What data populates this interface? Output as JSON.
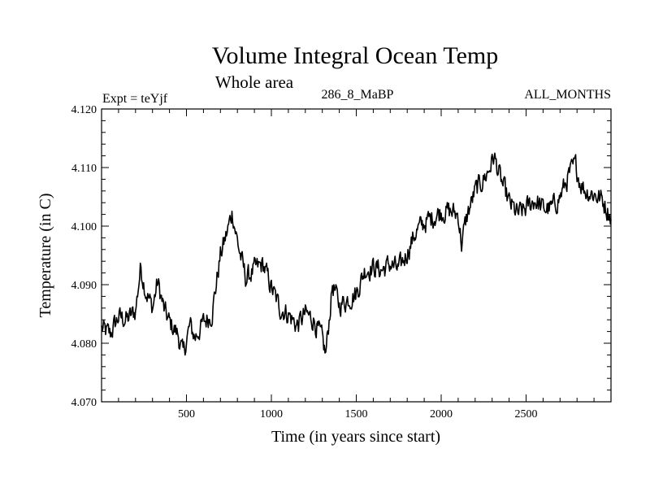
{
  "chart_data": {
    "type": "line",
    "title": "Volume Integral Ocean Temp",
    "subtitle": "Whole area",
    "experiment": "Expt = teYjf",
    "run_label": "286_8_MaBP",
    "months_label": "ALL_MONTHS",
    "xlabel": "Time (in years since start)",
    "ylabel": "Temperature (in C)",
    "xlim": [
      0,
      3000
    ],
    "ylim": [
      4.07,
      4.12
    ],
    "xticks": [
      {
        "value": 500,
        "label": "500"
      },
      {
        "value": 1000,
        "label": "1000"
      },
      {
        "value": 1500,
        "label": "1500"
      },
      {
        "value": 2000,
        "label": "2000"
      },
      {
        "value": 2500,
        "label": "2500"
      }
    ],
    "yticks": [
      {
        "value": 4.07,
        "label": "4.070"
      },
      {
        "value": 4.08,
        "label": "4.080"
      },
      {
        "value": 4.09,
        "label": "4.090"
      },
      {
        "value": 4.1,
        "label": "4.100"
      },
      {
        "value": 4.11,
        "label": "4.110"
      },
      {
        "value": 4.12,
        "label": "4.120"
      }
    ],
    "grid": false,
    "series": [
      {
        "name": "Volume integral ocean temperature",
        "color": "#000000",
        "x": [
          0,
          50,
          100,
          150,
          200,
          230,
          260,
          300,
          330,
          370,
          400,
          450,
          480,
          520,
          550,
          600,
          650,
          700,
          740,
          770,
          790,
          810,
          850,
          900,
          950,
          1000,
          1050,
          1100,
          1150,
          1200,
          1250,
          1300,
          1320,
          1360,
          1400,
          1450,
          1500,
          1550,
          1600,
          1650,
          1700,
          1750,
          1800,
          1850,
          1900,
          1950,
          2000,
          2050,
          2100,
          2120,
          2150,
          2200,
          2250,
          2280,
          2310,
          2350,
          2400,
          2450,
          2500,
          2550,
          2600,
          2650,
          2700,
          2750,
          2790,
          2820,
          2850,
          2900,
          2950,
          3000
        ],
        "y": [
          4.0825,
          4.0815,
          4.0845,
          4.084,
          4.0855,
          4.093,
          4.089,
          4.086,
          4.0905,
          4.0855,
          4.0835,
          4.0815,
          4.078,
          4.083,
          4.081,
          4.0835,
          4.085,
          4.095,
          4.099,
          4.1025,
          4.099,
          4.096,
          4.091,
          4.0925,
          4.0935,
          4.0895,
          4.086,
          4.085,
          4.083,
          4.085,
          4.084,
          4.0805,
          4.078,
          4.09,
          4.0865,
          4.0875,
          4.0885,
          4.0925,
          4.093,
          4.0925,
          4.0935,
          4.0925,
          4.0955,
          4.099,
          4.1005,
          4.1015,
          4.1025,
          4.1025,
          4.102,
          4.097,
          4.1015,
          4.106,
          4.108,
          4.1095,
          4.112,
          4.108,
          4.104,
          4.102,
          4.103,
          4.1045,
          4.103,
          4.103,
          4.105,
          4.1085,
          4.1105,
          4.1075,
          4.106,
          4.1055,
          4.1045,
          4.1015
        ]
      }
    ]
  }
}
